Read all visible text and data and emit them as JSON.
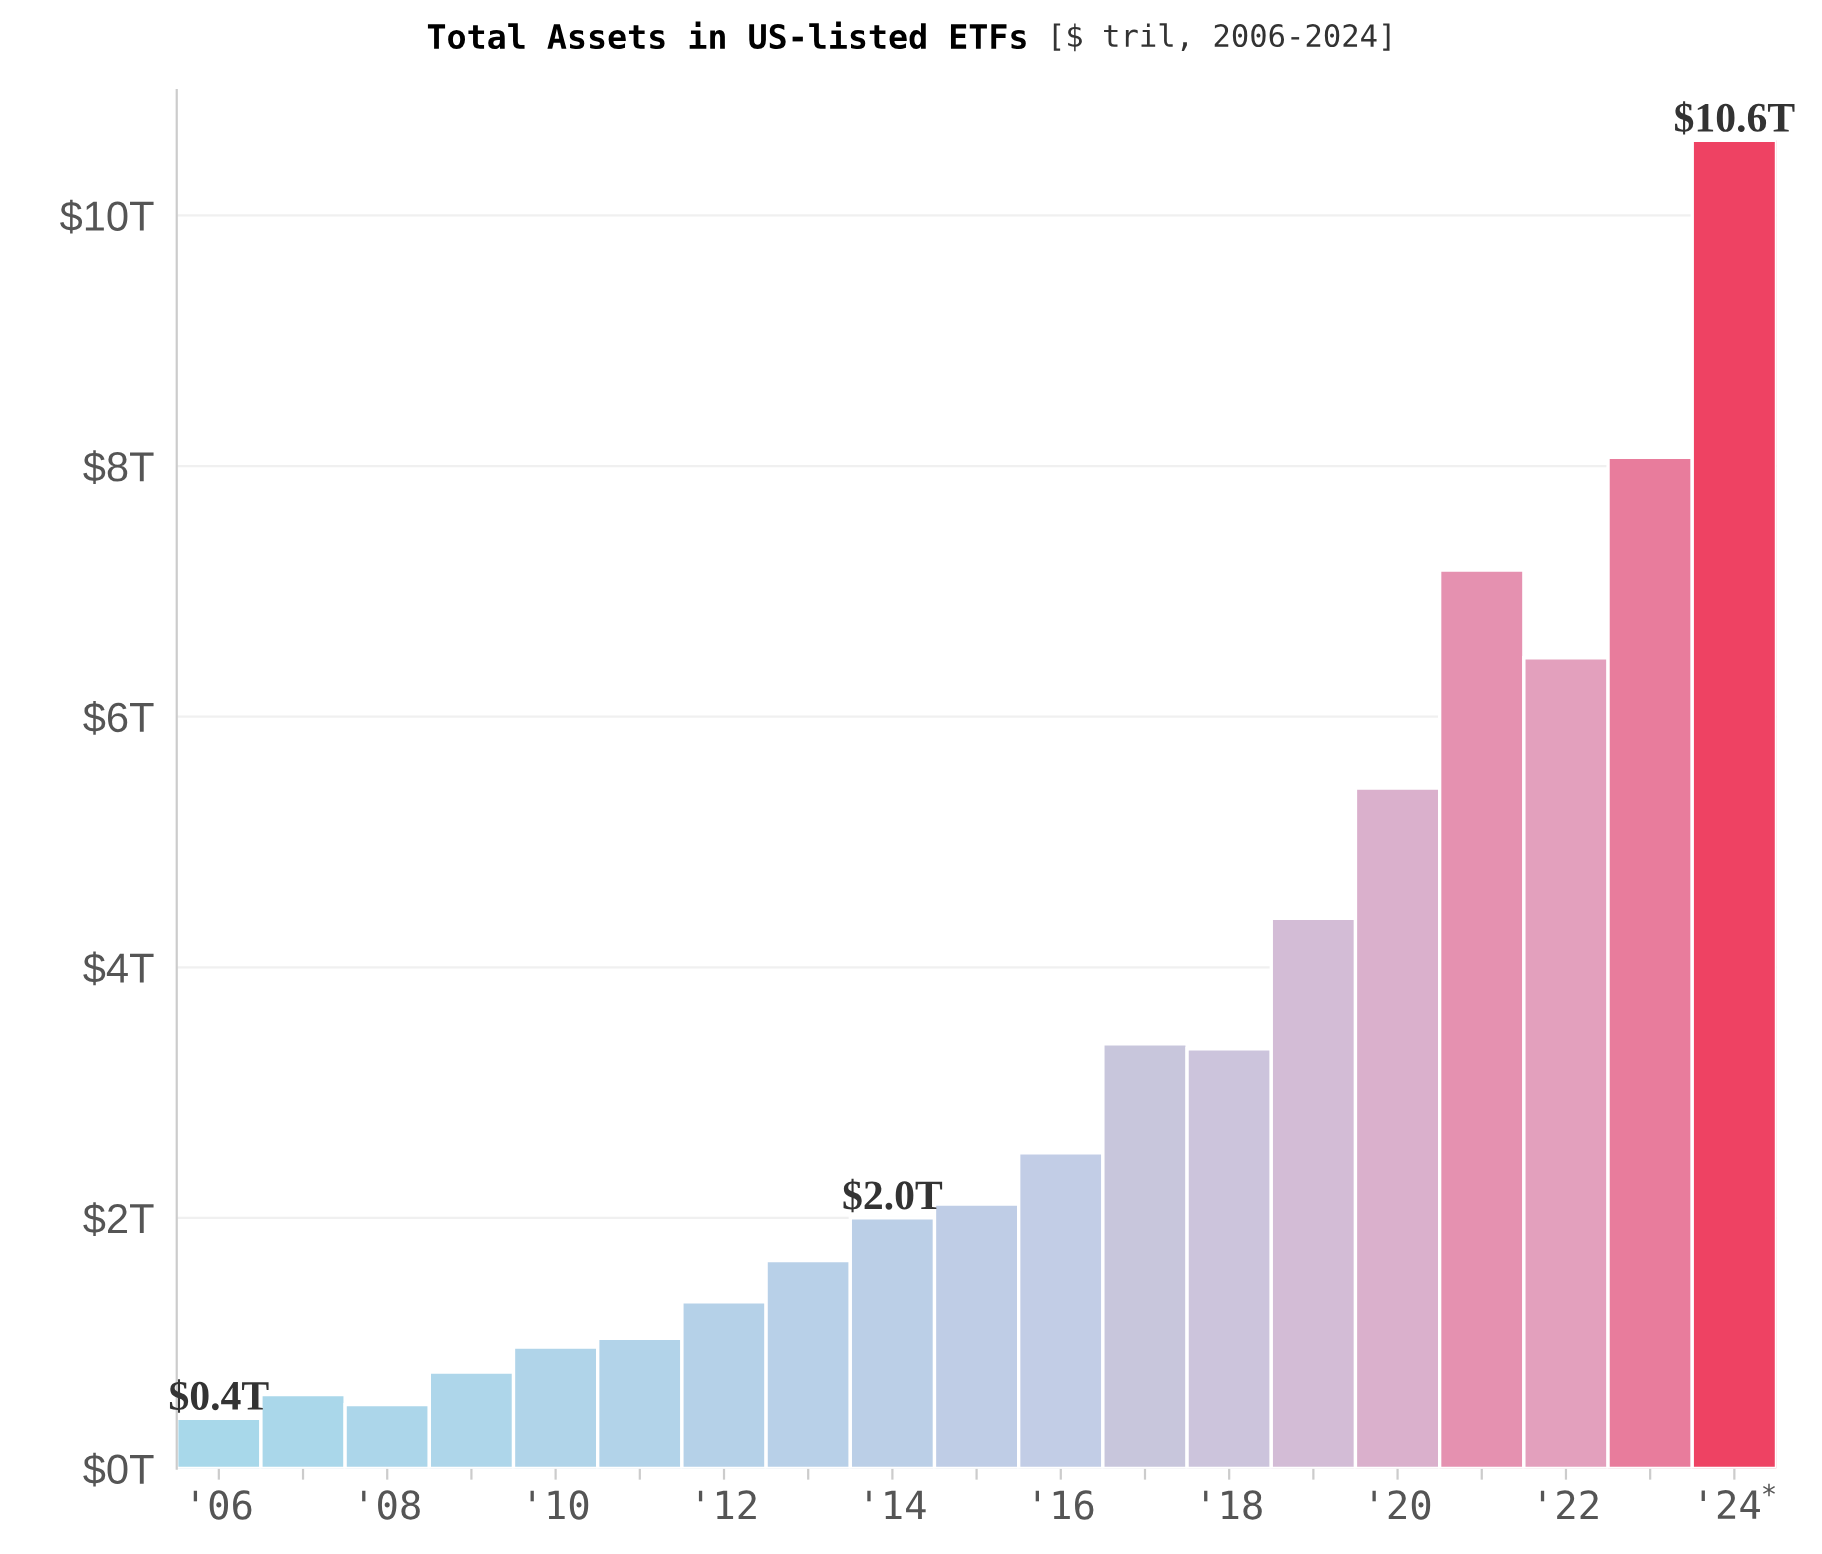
{
  "chart_data": {
    "type": "bar",
    "title": "Total Assets in US-listed ETFs",
    "subtitle": "[$ tril, 2006-2024]",
    "categories": [
      "'06",
      null,
      "'08",
      null,
      "'10",
      null,
      "'12",
      null,
      "'14",
      null,
      "'16",
      null,
      "'18",
      null,
      "'20",
      null,
      "'22",
      null,
      "'24$^{*}$"
    ],
    "values": [
      0.4,
      0.59,
      0.51,
      0.77,
      0.97,
      1.04,
      1.33,
      1.66,
      2.0,
      2.11,
      2.52,
      3.39,
      3.35,
      4.39,
      5.43,
      7.17,
      6.47,
      8.07,
      10.6
    ],
    "value_labels": [
      "$0.4T",
      null,
      null,
      null,
      null,
      null,
      null,
      null,
      "$2.0T",
      null,
      null,
      null,
      null,
      null,
      null,
      null,
      null,
      null,
      "$10.6T"
    ],
    "colors": [
      "#a8d8ea",
      "#aad7ea",
      "#acd6ea",
      "#aed6ea",
      "#b0d4e9",
      "#b2d3e9",
      "#b5d1e8",
      "#b8d0e8",
      "#bbcfe7",
      "#bfcde6",
      "#c2cde6",
      "#c8c6dc",
      "#ccc4dc",
      "#d3bcd6",
      "#dab0cc",
      "#e591b0",
      "#e3a0bd",
      "#e87c9c",
      "#ee4263"
    ],
    "ylim": [
      0,
      11
    ],
    "yticks": [
      {
        "value": 0,
        "label": "$0T"
      },
      {
        "value": 2,
        "label": "$2T"
      },
      {
        "value": 4,
        "label": "$4T"
      },
      {
        "value": 6,
        "label": "$6T"
      },
      {
        "value": 8,
        "label": "$8T"
      },
      {
        "value": 10,
        "label": "$10T"
      }
    ],
    "grid": "y"
  }
}
